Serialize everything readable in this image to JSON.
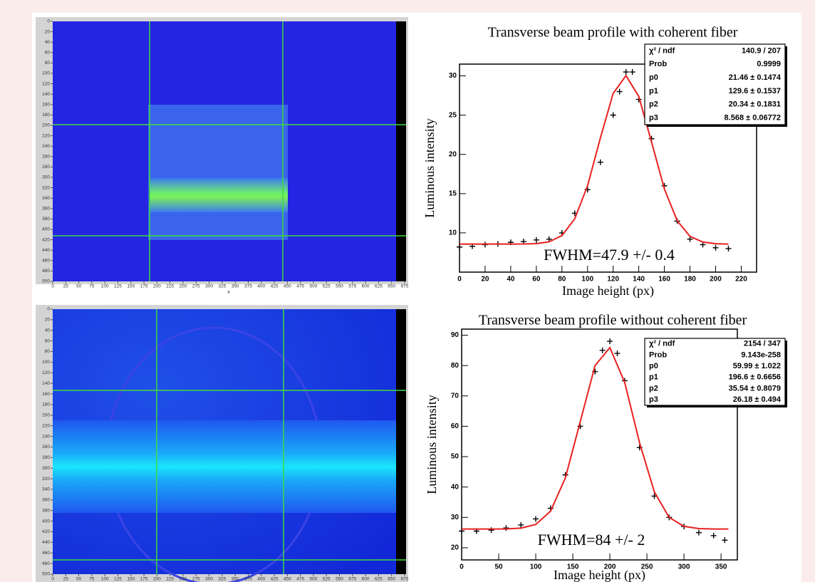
{
  "chart_data": [
    {
      "type": "image",
      "xlim": [
        0,
        675
      ],
      "ylim": [
        0,
        500
      ],
      "y_reversed": true,
      "xticks": [
        0,
        25,
        50,
        75,
        100,
        125,
        150,
        175,
        200,
        225,
        250,
        275,
        300,
        325,
        350,
        375,
        400,
        425,
        450,
        475,
        500,
        525,
        550,
        575,
        600,
        625,
        650,
        675
      ],
      "yticks": [
        0,
        20,
        40,
        60,
        80,
        100,
        120,
        140,
        160,
        180,
        200,
        220,
        240,
        260,
        280,
        300,
        320,
        340,
        360,
        380,
        400,
        420,
        440,
        460,
        480,
        500
      ],
      "x_label": "x"
    },
    {
      "type": "scatter",
      "title": "Transverse beam profile with coherent fiber",
      "x_label": "Image height (px)",
      "y_label": "Luminous intensity",
      "xlim": [
        0,
        232
      ],
      "ylim": [
        5,
        31.5
      ],
      "xticks": [
        0,
        20,
        40,
        60,
        80,
        100,
        120,
        140,
        160,
        180,
        200,
        220
      ],
      "yticks": [
        10,
        15,
        20,
        25,
        30
      ],
      "annotation": "FWHM=47.9 +/- 0.4",
      "stats": [
        [
          "χ² / ndf",
          "140.9 / 207"
        ],
        [
          "Prob",
          "0.9999"
        ],
        [
          "p0",
          "21.46 ± 0.1474"
        ],
        [
          "p1",
          "129.6 ± 0.1537"
        ],
        [
          "p2",
          "20.34 ± 0.1831"
        ],
        [
          "p3",
          "8.568 ± 0.06772"
        ]
      ],
      "series": [
        {
          "color": "#000000",
          "marker": "cross",
          "x": [
            0,
            10,
            20,
            30,
            40,
            50,
            60,
            70,
            80,
            90,
            100,
            110,
            120,
            125,
            130,
            135,
            140,
            150,
            160,
            170,
            180,
            190,
            200,
            210
          ],
          "values": [
            8.2,
            8.3,
            8.5,
            8.6,
            8.8,
            8.9,
            9.1,
            9.2,
            10,
            12.5,
            15.5,
            19,
            25,
            28,
            30.5,
            30.5,
            27,
            22,
            16,
            11.5,
            9.2,
            8.5,
            8.1,
            8
          ]
        },
        {
          "color": "#e8201f",
          "marker": "line",
          "x": [
            0,
            10,
            20,
            30,
            40,
            50,
            60,
            70,
            80,
            90,
            100,
            110,
            120,
            130,
            140,
            150,
            160,
            170,
            180,
            190,
            200,
            210
          ],
          "values": [
            8.57,
            8.57,
            8.57,
            8.57,
            8.57,
            8.58,
            8.63,
            8.86,
            9.66,
            11.79,
            16.01,
            22.07,
            27.77,
            30.03,
            27.39,
            21.55,
            15.6,
            11.55,
            9.56,
            8.83,
            8.62,
            8.57
          ]
        }
      ]
    },
    {
      "type": "image",
      "xlim": [
        0,
        675
      ],
      "ylim": [
        0,
        500
      ],
      "y_reversed": true,
      "xticks": [
        0,
        25,
        50,
        75,
        100,
        125,
        150,
        175,
        200,
        225,
        250,
        275,
        300,
        325,
        350,
        375,
        400,
        425,
        450,
        475,
        500,
        525,
        550,
        575,
        600,
        625,
        650,
        675
      ],
      "yticks": [
        0,
        20,
        40,
        60,
        80,
        100,
        120,
        140,
        160,
        180,
        200,
        220,
        240,
        260,
        280,
        300,
        320,
        340,
        360,
        380,
        400,
        420,
        440,
        460,
        480,
        500
      ]
    },
    {
      "type": "scatter",
      "title": "Transverse beam profile without coherent fiber",
      "x_label": "Image height (px)",
      "y_label": "Luminous intensity",
      "xlim": [
        0,
        372
      ],
      "ylim": [
        16,
        92
      ],
      "xticks": [
        0,
        50,
        100,
        150,
        200,
        250,
        300,
        350
      ],
      "yticks": [
        20,
        30,
        40,
        50,
        60,
        70,
        80,
        90
      ],
      "annotation": "FWHM=84 +/- 2",
      "stats": [
        [
          "χ² / ndf",
          "2154 / 347"
        ],
        [
          "Prob",
          "9.143e-258"
        ],
        [
          "p0",
          "59.99 ± 1.022"
        ],
        [
          "p1",
          "196.6 ± 0.6656"
        ],
        [
          "p2",
          "35.54 ± 0.8079"
        ],
        [
          "p3",
          "26.18 ± 0.494"
        ]
      ],
      "series": [
        {
          "color": "#000000",
          "marker": "cross",
          "x": [
            0,
            20,
            40,
            60,
            80,
            100,
            120,
            140,
            160,
            180,
            190,
            200,
            210,
            220,
            240,
            260,
            280,
            300,
            320,
            340,
            355
          ],
          "values": [
            25.5,
            25.5,
            25.8,
            26.5,
            27.5,
            29.5,
            33,
            44,
            60,
            78,
            85,
            88,
            84,
            75,
            53,
            37,
            30,
            27,
            25,
            24,
            22.5
          ]
        },
        {
          "color": "#e8201f",
          "marker": "line",
          "x": [
            0,
            20,
            40,
            60,
            80,
            100,
            120,
            140,
            160,
            180,
            200,
            220,
            240,
            260,
            280,
            300,
            320,
            340,
            360
          ],
          "values": [
            26.18,
            26.18,
            26.18,
            26.2,
            26.46,
            27.67,
            32.06,
            43.04,
            61.51,
            80,
            85.9,
            74.47,
            54.61,
            38.4,
            30,
            27.05,
            26.32,
            26.18,
            26.18
          ]
        }
      ]
    }
  ]
}
